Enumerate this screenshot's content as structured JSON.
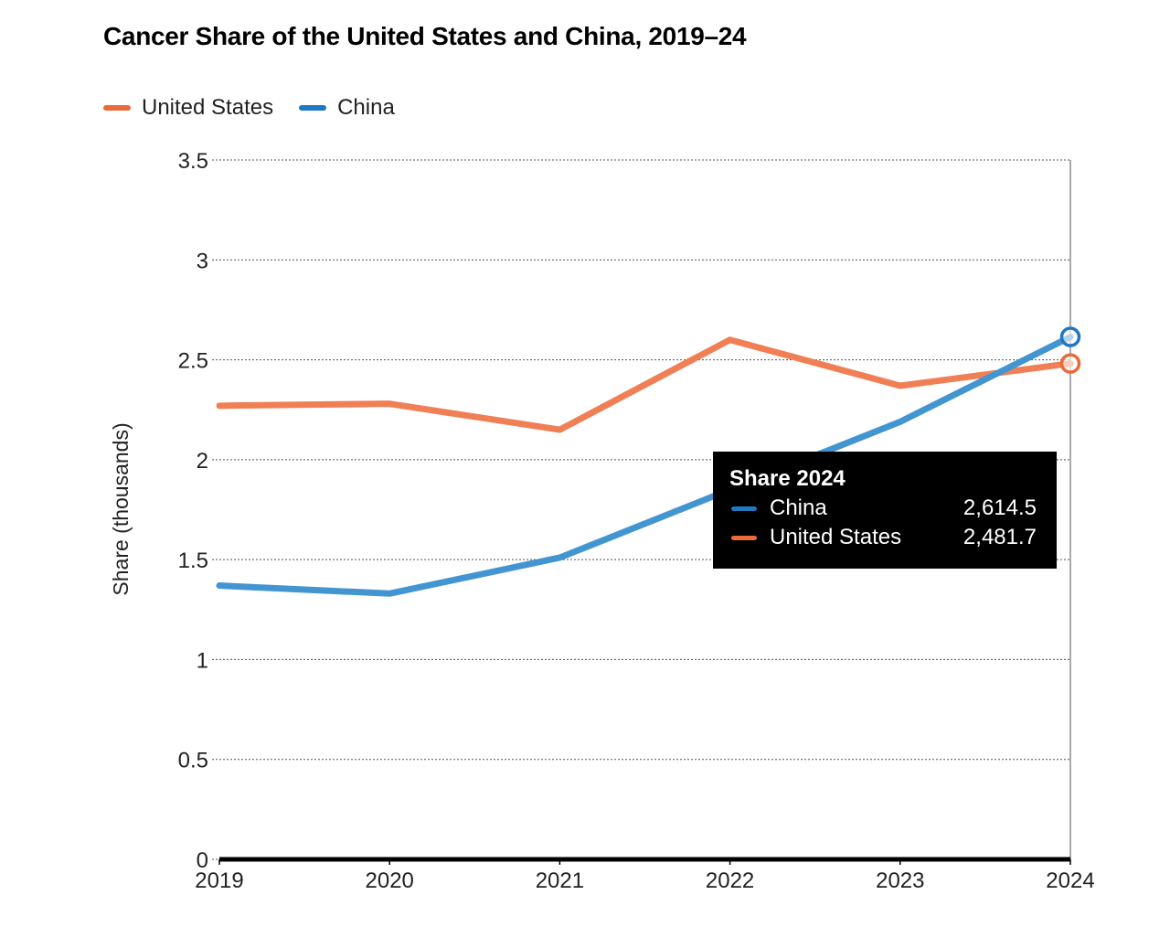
{
  "chart_data": {
    "type": "line",
    "title": "Cancer Share of the United States and China, 2019–24",
    "xlabel": "",
    "ylabel": "Share (thousands)",
    "x": [
      "2019",
      "2020",
      "2021",
      "2022",
      "2023",
      "2024"
    ],
    "ylim": [
      0,
      3.5
    ],
    "yticks": [
      "0",
      "0.5",
      "1",
      "1.5",
      "2",
      "2.5",
      "3",
      "3.5"
    ],
    "ytick_values": [
      0,
      0.5,
      1,
      1.5,
      2,
      2.5,
      3,
      3.5
    ],
    "grid": true,
    "legend_position": "top-left",
    "series": [
      {
        "name": "United States",
        "color": "#f07f55",
        "legend_color": "#ea6a3b",
        "values": [
          2.27,
          2.28,
          2.15,
          2.6,
          2.37,
          2.4817
        ]
      },
      {
        "name": "China",
        "color": "#4395d1",
        "legend_color": "#1f78c1",
        "values": [
          1.37,
          1.33,
          1.51,
          1.85,
          2.19,
          2.6145
        ]
      }
    ],
    "tooltip": {
      "title": "Share 2024",
      "rows": [
        {
          "name": "China",
          "value": "2,614.5",
          "color": "#1f78c1"
        },
        {
          "name": "United States",
          "value": "2,481.7",
          "color": "#ea6a3b"
        }
      ]
    },
    "highlight_index": 5
  }
}
